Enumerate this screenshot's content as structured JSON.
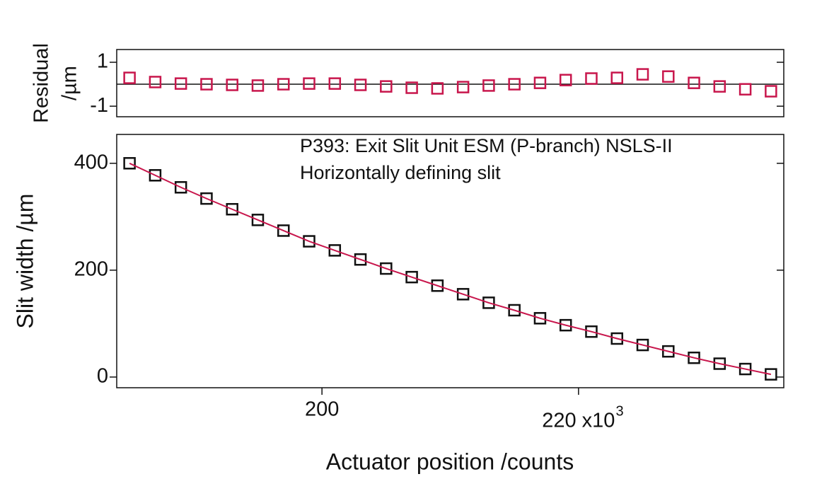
{
  "chart_data": [
    {
      "type": "scatter",
      "y_label_lines": [
        "Residual",
        "/µm"
      ],
      "x": [
        185,
        187,
        189,
        191,
        193,
        195,
        197,
        199,
        201,
        203,
        205,
        207,
        209,
        211,
        213,
        215,
        217,
        219,
        221,
        223,
        225,
        227,
        229,
        231,
        233,
        235
      ],
      "series": [
        {
          "color": "#c8164c",
          "marker": "square",
          "values": [
            0.29,
            0.1,
            0.03,
            0,
            -0.03,
            -0.06,
            0,
            0.03,
            0.03,
            -0.03,
            -0.1,
            -0.16,
            -0.19,
            -0.13,
            -0.06,
            0,
            0.06,
            0.19,
            0.26,
            0.29,
            0.45,
            0.35,
            0.06,
            -0.1,
            -0.23,
            -0.32
          ]
        }
      ],
      "xlim": [
        184,
        236
      ],
      "ylim": [
        -1.48,
        1.58
      ],
      "yticks": [
        1,
        -1
      ],
      "zero_line": true
    },
    {
      "type": "scatter",
      "annotations": [
        "P393: Exit Slit Unit ESM (P-branch) NSLS-II",
        "Horizontally defining slit"
      ],
      "x_label": "Actuator position /counts",
      "y_label": "Slit width /µm",
      "x": [
        185,
        187,
        189,
        191,
        193,
        195,
        197,
        199,
        201,
        203,
        205,
        207,
        209,
        211,
        213,
        215,
        217,
        219,
        221,
        223,
        225,
        227,
        229,
        231,
        233,
        235
      ],
      "series": [
        {
          "color": "#111111",
          "marker": "square",
          "values": [
            400,
            377.5,
            355,
            334,
            314,
            294,
            274,
            254,
            237,
            220,
            203,
            187,
            171,
            155,
            139,
            125,
            110,
            97,
            85,
            72,
            60,
            48,
            36,
            25,
            15,
            5
          ]
        },
        {
          "color": "#c8164c",
          "marker": "line",
          "values": [
            400,
            377.5,
            355,
            334,
            314,
            294,
            274,
            254,
            237,
            220,
            203,
            187,
            171,
            155,
            139,
            125,
            110,
            97,
            85,
            72,
            60,
            48,
            36,
            25,
            15,
            5
          ]
        }
      ],
      "xlim": [
        184,
        236
      ],
      "xticks": [
        200,
        {
          "value": 220,
          "label": "220 x10"
        }
      ],
      "x_exponent": "3",
      "ylim": [
        -20,
        454
      ],
      "yticks": [
        0,
        200,
        400
      ]
    }
  ]
}
